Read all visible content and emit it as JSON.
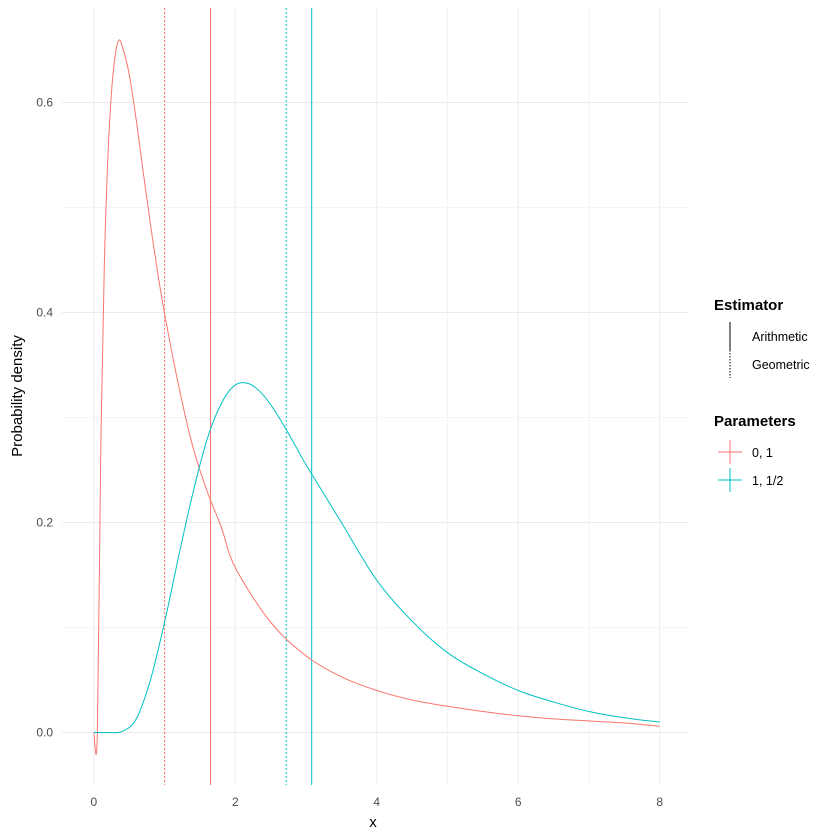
{
  "chart_data": {
    "type": "line",
    "title": "",
    "xlabel": "x",
    "ylabel": "Probability density",
    "xlim": [
      -0.45,
      8.4
    ],
    "ylim": [
      -0.05,
      0.69
    ],
    "x_ticks": [
      0,
      2,
      4,
      6,
      8
    ],
    "x_tick_labels": [
      "0",
      "2",
      "4",
      "6",
      "8"
    ],
    "y_ticks": [
      0.0,
      0.2,
      0.4,
      0.6
    ],
    "y_tick_labels": [
      "0.0",
      "0.2",
      "0.4",
      "0.6"
    ],
    "grid": true,
    "legend_position": "right",
    "series": [
      {
        "name": "0, 1",
        "color": "#F8766D",
        "x": [
          0.0,
          0.05,
          0.1,
          0.15,
          0.2,
          0.25,
          0.3,
          0.35,
          0.4,
          0.5,
          0.6,
          0.7,
          0.8,
          0.9,
          1.0,
          1.2,
          1.4,
          1.6,
          1.8,
          2.0,
          2.5,
          3.0,
          3.5,
          4.0,
          4.5,
          5.0,
          5.5,
          6.0,
          6.5,
          7.0,
          7.5,
          8.0
        ],
        "y": [
          0.0,
          0.0,
          0.28,
          0.45,
          0.55,
          0.61,
          0.644,
          0.659,
          0.654,
          0.627,
          0.583,
          0.533,
          0.484,
          0.439,
          0.399,
          0.33,
          0.272,
          0.23,
          0.196,
          0.157,
          0.105,
          0.073,
          0.053,
          0.04,
          0.031,
          0.025,
          0.02,
          0.016,
          0.013,
          0.011,
          0.009,
          0.006
        ]
      },
      {
        "name": "1, 1/2",
        "color": "#00BFC4",
        "x": [
          0.0,
          0.2,
          0.4,
          0.6,
          0.8,
          1.0,
          1.2,
          1.4,
          1.6,
          1.8,
          2.0,
          2.2,
          2.4,
          2.6,
          2.8,
          3.0,
          3.2,
          3.5,
          4.0,
          4.5,
          5.0,
          5.5,
          6.0,
          6.5,
          7.0,
          7.5,
          8.0
        ],
        "y": [
          0.0,
          0.0,
          0.001,
          0.013,
          0.05,
          0.105,
          0.168,
          0.228,
          0.279,
          0.313,
          0.331,
          0.332,
          0.321,
          0.302,
          0.279,
          0.255,
          0.233,
          0.2,
          0.145,
          0.106,
          0.076,
          0.056,
          0.04,
          0.029,
          0.02,
          0.014,
          0.01
        ]
      }
    ],
    "vlines": [
      {
        "parameters": "0, 1",
        "estimator": "Geometric",
        "x": 1.0,
        "color": "#F8766D",
        "linetype": "dotted"
      },
      {
        "parameters": "0, 1",
        "estimator": "Arithmetic",
        "x": 1.65,
        "color": "#F8766D",
        "linetype": "solid"
      },
      {
        "parameters": "1, 1/2",
        "estimator": "Geometric",
        "x": 2.72,
        "color": "#00BFC4",
        "linetype": "dotted"
      },
      {
        "parameters": "1, 1/2",
        "estimator": "Arithmetic",
        "x": 3.08,
        "color": "#00BFC4",
        "linetype": "solid"
      }
    ],
    "legends": [
      {
        "title": "Estimator",
        "entries": [
          {
            "label": "Arithmetic",
            "linetype": "solid",
            "color": "#000000"
          },
          {
            "label": "Geometric",
            "linetype": "dotted",
            "color": "#000000"
          }
        ]
      },
      {
        "title": "Parameters",
        "entries": [
          {
            "label": "0, 1",
            "color": "#F8766D"
          },
          {
            "label": "1, 1/2",
            "color": "#00BFC4"
          }
        ]
      }
    ],
    "grid_color": "#ebebeb"
  }
}
